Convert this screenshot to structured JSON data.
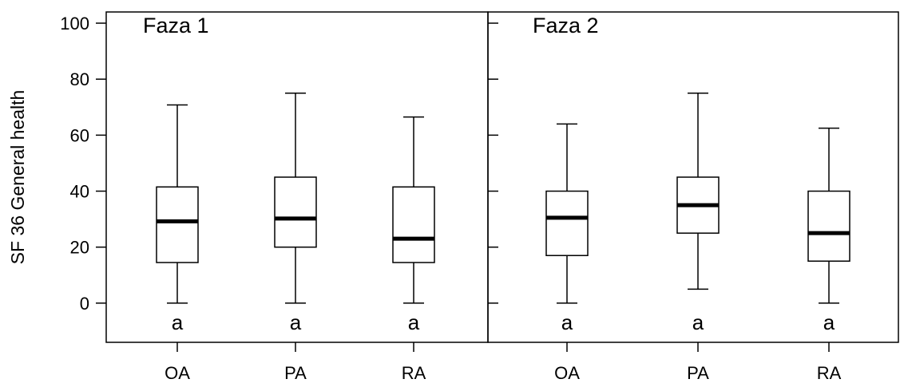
{
  "chart_data": {
    "type": "boxplot",
    "ylabel": "SF 36 General health",
    "ylim": [
      -14,
      104
    ],
    "yticks": [
      0,
      20,
      40,
      60,
      80,
      100
    ],
    "ytick_labels": [
      "0",
      "20",
      "40",
      "60",
      "80",
      "100"
    ],
    "panels": [
      {
        "title": "Faza 1",
        "categories": [
          "OA",
          "PA",
          "RA"
        ],
        "boxes": [
          {
            "min": 0,
            "q1": 14.5,
            "median": 29.2,
            "q3": 41.5,
            "max": 70.8,
            "letter": "a"
          },
          {
            "min": 0,
            "q1": 20,
            "median": 30.2,
            "q3": 45,
            "max": 75,
            "letter": "a"
          },
          {
            "min": 0,
            "q1": 14.5,
            "median": 23,
            "q3": 41.5,
            "max": 66.5,
            "letter": "a"
          }
        ]
      },
      {
        "title": "Faza 2",
        "categories": [
          "OA",
          "PA",
          "RA"
        ],
        "boxes": [
          {
            "min": 0,
            "q1": 17,
            "median": 30.5,
            "q3": 40,
            "max": 64,
            "letter": "a"
          },
          {
            "min": 5,
            "q1": 25,
            "median": 35,
            "q3": 45,
            "max": 75,
            "letter": "a"
          },
          {
            "min": 0,
            "q1": 15,
            "median": 25,
            "q3": 40,
            "max": 62.5,
            "letter": "a"
          }
        ]
      }
    ]
  }
}
